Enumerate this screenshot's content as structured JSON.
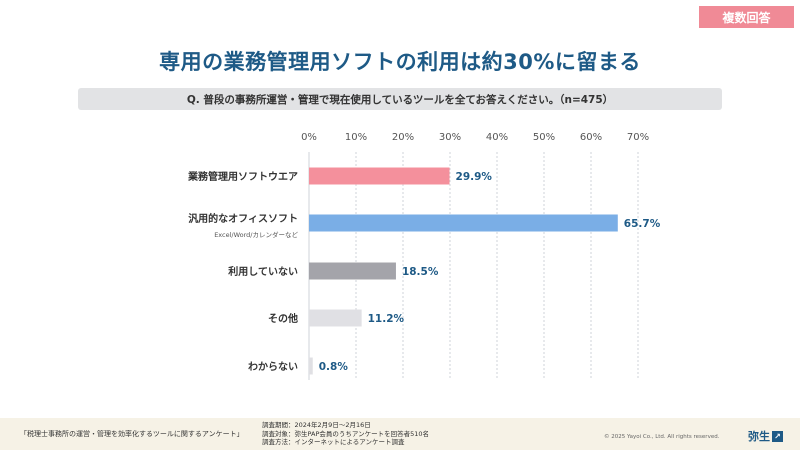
{
  "badge": "複数回答",
  "title": "専用の業務管理用ソフトの利用は約30%に留まる",
  "question": "Q. 普段の事務所運営・管理で現在使用しているツールを全てお答えください。（n=475）",
  "chart_data": {
    "type": "bar",
    "orientation": "horizontal",
    "categories": [
      "業務管理用ソフトウエア",
      "汎用的なオフィスソフト",
      "利用していない",
      "その他",
      "わからない"
    ],
    "category_sublabels": [
      "",
      "Excel/Word/カレンダーなど",
      "",
      "",
      ""
    ],
    "values": [
      29.9,
      65.7,
      18.5,
      11.2,
      0.8
    ],
    "value_labels": [
      "29.9%",
      "65.7%",
      "18.5%",
      "11.2%",
      "0.8%"
    ],
    "bar_colors": [
      "#f4909c",
      "#7aaee6",
      "#a4a4aa",
      "#e0e0e4",
      "#e0e0e4"
    ],
    "xlim": [
      0,
      70
    ],
    "ticks": [
      "0%",
      "10%",
      "20%",
      "30%",
      "40%",
      "50%",
      "60%",
      "70%"
    ],
    "grid": true,
    "label_color": "#1e5a86"
  },
  "footer": {
    "survey_title": "「税理士事務所の運営・管理を効率化するツールに関するアンケート」",
    "period": "調査期間：2024年2月9日～2月16日",
    "target": "調査対象：弥生PAP会員のうちアンケートを回答者510名",
    "method": "調査方法：インターネットによるアンケート調査",
    "copyright": "© 2025 Yayoi Co., Ltd.  All rights reserved.",
    "brand": "弥生",
    "brand_icon": "arrow-icon"
  }
}
